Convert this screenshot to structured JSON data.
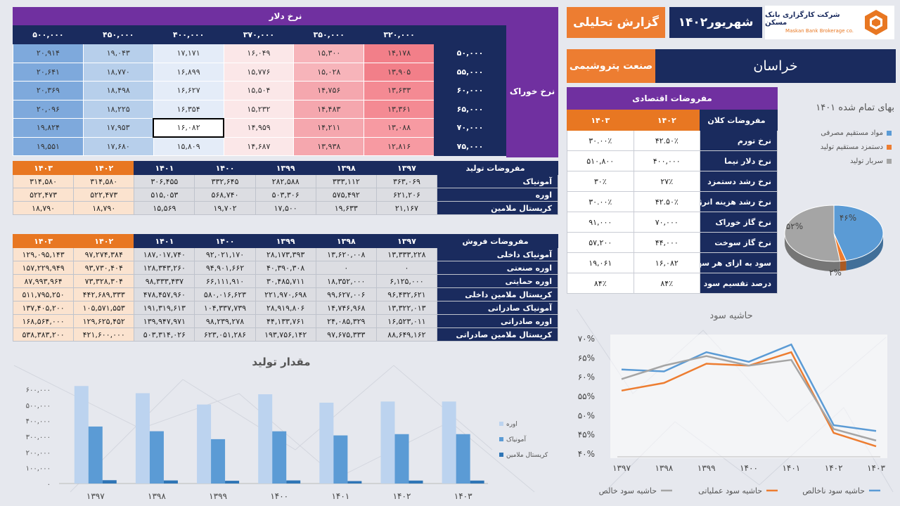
{
  "header": {
    "company_name": "شرکت کارگزاری بانک مسکن",
    "company_name_en": "Maskan Bank Brokerage co.",
    "report_date": "شهریور۱۴۰۲",
    "report_title": "گزارش تحلیلی",
    "region": "خراسان",
    "industry": "صنعت پتروشیمی",
    "colors": {
      "navy": "#1a2b5e",
      "orange": "#e87722",
      "purple": "#7030a0"
    }
  },
  "sensitivity": {
    "title": "نرخ دلار",
    "row_title": "نرخ خوراک",
    "columns": [
      "۳۲۰,۰۰۰",
      "۳۵۰,۰۰۰",
      "۳۷۰,۰۰۰",
      "۴۰۰,۰۰۰",
      "۴۵۰,۰۰۰",
      "۵۰۰,۰۰۰"
    ],
    "rows": [
      {
        "feed": "۵۰,۰۰۰",
        "values": [
          "۱۴,۱۷۸",
          "۱۵,۳۰۰",
          "۱۶,۰۴۹",
          "۱۷,۱۷۱",
          "۱۹,۰۴۳",
          "۲۰,۹۱۴"
        ]
      },
      {
        "feed": "۵۵,۰۰۰",
        "values": [
          "۱۳,۹۰۵",
          "۱۵,۰۲۸",
          "۱۵,۷۷۶",
          "۱۶,۸۹۹",
          "۱۸,۷۷۰",
          "۲۰,۶۴۱"
        ]
      },
      {
        "feed": "۶۰,۰۰۰",
        "values": [
          "۱۳,۶۳۳",
          "۱۴,۷۵۶",
          "۱۵,۵۰۴",
          "۱۶,۶۲۷",
          "۱۸,۴۹۸",
          "۲۰,۳۶۹"
        ]
      },
      {
        "feed": "۶۵,۰۰۰",
        "values": [
          "۱۳,۳۶۱",
          "۱۴,۴۸۳",
          "۱۵,۲۳۲",
          "۱۶,۳۵۴",
          "۱۸,۲۲۵",
          "۲۰,۰۹۶"
        ]
      },
      {
        "feed": "۷۰,۰۰۰",
        "values": [
          "۱۳,۰۸۸",
          "۱۴,۲۱۱",
          "۱۴,۹۵۹",
          "۱۶,۰۸۲",
          "۱۷,۹۵۳",
          "۱۹,۸۲۴"
        ]
      },
      {
        "feed": "۷۵,۰۰۰",
        "values": [
          "۱۲,۸۱۶",
          "۱۳,۹۳۸",
          "۱۴,۶۸۷",
          "۱۵,۸۰۹",
          "۱۷,۶۸۰",
          "۱۹,۵۵۱"
        ]
      }
    ]
  },
  "production": {
    "title": "مفروضات تولید",
    "years": [
      "۱۳۹۷",
      "۱۳۹۸",
      "۱۳۹۹",
      "۱۴۰۰",
      "۱۴۰۱",
      "۱۴۰۲",
      "۱۴۰۳"
    ],
    "rows": [
      {
        "label": "آمونیاک",
        "values": [
          "۳۶۳,۰۶۹",
          "۳۳۳,۱۱۲",
          "۲۸۲,۵۸۸",
          "۳۳۲,۶۴۵",
          "۳۰۶,۴۵۵",
          "۳۱۴,۵۸۰",
          "۳۱۴,۵۸۰"
        ]
      },
      {
        "label": "اوره",
        "values": [
          "۶۲۱,۲۰۶",
          "۵۷۵,۴۹۲",
          "۵۰۳,۳۰۶",
          "۵۶۸,۷۴۰",
          "۵۱۵,۰۵۳",
          "۵۲۲,۴۷۳",
          "۵۲۲,۴۷۳"
        ]
      },
      {
        "label": "کریستال ملامین",
        "values": [
          "۲۱,۱۶۷",
          "۱۹,۶۳۳",
          "۱۷,۵۰۰",
          "۱۹,۷۰۲",
          "۱۵,۵۶۹",
          "۱۸,۷۹۰",
          "۱۸,۷۹۰"
        ]
      }
    ]
  },
  "sales": {
    "title": "مفروضات فروش",
    "years": [
      "۱۳۹۷",
      "۱۳۹۸",
      "۱۳۹۹",
      "۱۴۰۰",
      "۱۴۰۱",
      "۱۴۰۲",
      "۱۴۰۳"
    ],
    "rows": [
      {
        "label": "آمونیاک داخلی",
        "values": [
          "۱۳,۳۳۳,۲۲۸",
          "۱۳,۶۲۰,۰۰۸",
          "۲۸,۱۷۳,۳۹۳",
          "۹۲,۰۲۱,۱۷۰",
          "۱۸۷,۰۱۷,۷۴۰",
          "۹۷,۲۷۴,۳۸۴",
          "۱۲۹,۰۹۵,۱۴۳"
        ]
      },
      {
        "label": "اوره صنعتی",
        "values": [
          "۰",
          "۰",
          "۴۰,۳۹۰,۳۰۸",
          "۹۴,۹۰۱,۶۶۲",
          "۱۲۸,۳۴۳,۲۶۰",
          "۹۳,۷۳۰,۴۰۴",
          "۱۵۷,۲۲۹,۹۴۹"
        ]
      },
      {
        "label": "اوره حمایتی",
        "values": [
          "۶,۱۲۵,۰۰۰",
          "۱۸,۳۵۲,۰۰۰",
          "۳۰,۴۸۵,۷۱۱",
          "۶۶,۱۱۱,۹۱۰",
          "۹۸,۳۳۳,۴۳۷",
          "۷۳,۳۲۸,۳۰۴",
          "۸۷,۹۹۳,۹۶۴"
        ]
      },
      {
        "label": "کریستال ملامین داخلی",
        "values": [
          "۹۶,۴۳۲,۶۲۱",
          "۹۹,۶۲۷,۰۰۶",
          "۲۲۱,۹۷۰,۶۹۸",
          "۵۸۰,۰۱۶,۶۲۳",
          "۴۷۸,۴۵۷,۹۶۰",
          "۴۴۲,۶۸۹,۳۳۳",
          "۵۱۱,۷۹۵,۲۵۰"
        ]
      },
      {
        "label": "آمونیاک صادراتی",
        "values": [
          "۱۳,۳۲۲,۰۱۳",
          "۱۴,۷۴۶,۹۶۸",
          "۲۸,۹۱۹,۸۰۶",
          "۱۰۴,۳۳۷,۷۳۹",
          "۱۹۱,۳۱۹,۶۱۳",
          "۱۰۵,۵۷۱,۵۵۳",
          "۱۳۷,۴۰۵,۲۰۰"
        ]
      },
      {
        "label": "اوره صادراتی",
        "values": [
          "۱۶,۵۲۳,۰۱۱",
          "۲۴,۰۸۵,۳۲۹",
          "۴۴,۱۳۳,۷۶۱",
          "۹۸,۲۳۹,۲۷۸",
          "۱۳۹,۹۴۷,۹۷۱",
          "۱۲۹,۶۲۵,۴۵۲",
          "۱۶۸,۵۶۴,۰۰۰"
        ]
      },
      {
        "label": "کریستال ملامین صادراتی",
        "values": [
          "۸۸,۶۴۹,۱۶۲",
          "۹۷,۶۷۵,۳۳۳",
          "۱۹۳,۷۵۶,۱۴۲",
          "۶۲۳,۰۵۱,۲۸۶",
          "۵۰۳,۳۱۴,۰۲۶",
          "۴۲۱,۶۰۰,۰۰۰",
          "۵۳۸,۳۸۳,۲۰۰"
        ]
      }
    ]
  },
  "economic": {
    "title": "مفروضات اقتصادی",
    "macro_label": "مفروضات کلان",
    "year_a": "۱۴۰۲",
    "year_b": "۱۴۰۳",
    "rows": [
      {
        "label": "نرخ تورم",
        "a": "۴۲.۵۰٪",
        "b": "۳۰.۰۰٪"
      },
      {
        "label": "نرخ دلار نیما",
        "a": "۴۰۰,۰۰۰",
        "b": "۵۱۰,۸۰۰"
      },
      {
        "label": "نرخ رشد دستمزد",
        "a": "۲۷٪",
        "b": "۳۰٪"
      },
      {
        "label": "نرخ رشد هزینه انرژی",
        "a": "۴۲.۵۰٪",
        "b": "۳۰.۰۰٪"
      },
      {
        "label": "نرخ گاز خوراک",
        "a": "۷۰,۰۰۰",
        "b": "۹۱,۰۰۰"
      },
      {
        "label": "نرخ گاز سوخت",
        "a": "۴۴,۰۰۰",
        "b": "۵۷,۲۰۰"
      },
      {
        "label": "سود به ازای هر سهم",
        "a": "۱۶,۰۸۲",
        "b": "۱۹,۰۶۱"
      },
      {
        "label": "درصد تقسیم سود",
        "a": "۸۴٪",
        "b": "۸۴٪"
      }
    ]
  },
  "chart_data": [
    {
      "type": "pie",
      "title": "بهای تمام شده ۱۴۰۱",
      "categories": [
        "مواد مستقیم مصرفی",
        "دستمزد مستقیم تولید",
        "سربار تولید"
      ],
      "values": [
        46,
        2,
        52
      ],
      "labels": [
        "۴۶%",
        "۲%",
        "۵۲%"
      ],
      "colors": [
        "#5b9bd5",
        "#ed7d31",
        "#a5a5a5"
      ],
      "legend": "left"
    },
    {
      "type": "line",
      "title": "حاشیه سود",
      "categories": [
        "۱۳۹۷",
        "۱۳۹۸",
        "۱۳۹۹",
        "۱۴۰۰",
        "۱۴۰۱",
        "۱۴۰۲",
        "۱۴۰۳"
      ],
      "y_tick_labels": [
        "۴۰%",
        "۴۵%",
        "۵۰%",
        "۵۵%",
        "۶۰%",
        "۶۵%",
        "۷۰%"
      ],
      "ylim": [
        40,
        70
      ],
      "series": [
        {
          "name": "حاشیه سود ناخالص",
          "values": [
            62,
            61.5,
            66.5,
            64,
            68.5,
            47.5,
            46
          ],
          "color": "#5b9bd5"
        },
        {
          "name": "حاشیه سود عملیاتی",
          "values": [
            56.5,
            58.5,
            63.5,
            63,
            66.5,
            45.5,
            42
          ],
          "color": "#ed7d31"
        },
        {
          "name": "حاشیه سود خالص",
          "values": [
            59.5,
            63,
            65.5,
            63,
            64.5,
            46.5,
            43.5
          ],
          "color": "#a5a5a5"
        }
      ],
      "legend": "bottom"
    },
    {
      "type": "bar",
      "title": "مقدار تولید",
      "categories": [
        "۱۳۹۷",
        "۱۳۹۸",
        "۱۳۹۹",
        "۱۴۰۰",
        "۱۴۰۱",
        "۱۴۰۲",
        "۱۴۰۳"
      ],
      "y_tick_labels": [
        "۰",
        "۱۰۰,۰۰۰",
        "۲۰۰,۰۰۰",
        "۳۰۰,۰۰۰",
        "۴۰۰,۰۰۰",
        "۵۰۰,۰۰۰",
        "۶۰۰,۰۰۰"
      ],
      "ylim": [
        0,
        600000
      ],
      "series": [
        {
          "name": "اوره",
          "values": [
            621206,
            575492,
            503306,
            568740,
            515053,
            522473,
            522473
          ],
          "color": "#bcd3ef"
        },
        {
          "name": "آمونیاک",
          "values": [
            363069,
            333112,
            282588,
            332645,
            306455,
            314580,
            314580
          ],
          "color": "#5b9bd5"
        },
        {
          "name": "کریستال ملامین",
          "values": [
            21167,
            19633,
            17500,
            19702,
            15569,
            18790,
            18790
          ],
          "color": "#2e75b6"
        }
      ],
      "legend": "right"
    }
  ]
}
